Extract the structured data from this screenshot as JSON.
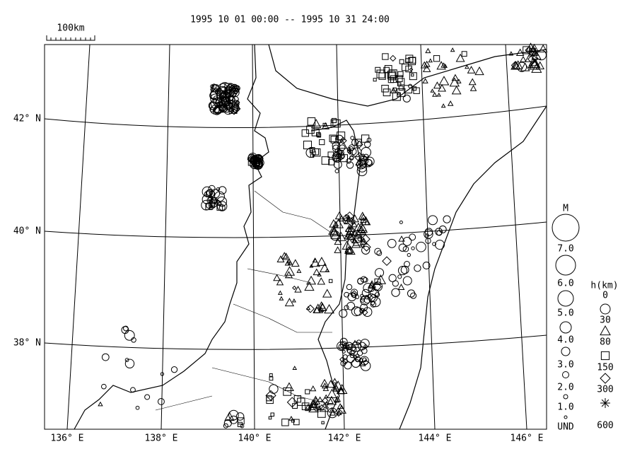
{
  "header": {
    "title": "1995 10 01 00:00 -- 1995 10 31 24:00"
  },
  "scale_bar": {
    "label": "100km"
  },
  "latitudes": [
    "42° N",
    "40° N",
    "38° N"
  ],
  "longitudes": [
    "136° E",
    "138° E",
    "140° E",
    "142° E",
    "144° E",
    "146° E"
  ],
  "magnitude_legend": {
    "title": "M",
    "labels": [
      "7.0",
      "6.0",
      "5.0",
      "4.0",
      "3.0",
      "2.0",
      "1.0",
      "UND"
    ]
  },
  "depth_legend": {
    "title": "h(km)",
    "labels": [
      "0",
      "30",
      "80",
      "150",
      "300",
      "600"
    ]
  }
}
